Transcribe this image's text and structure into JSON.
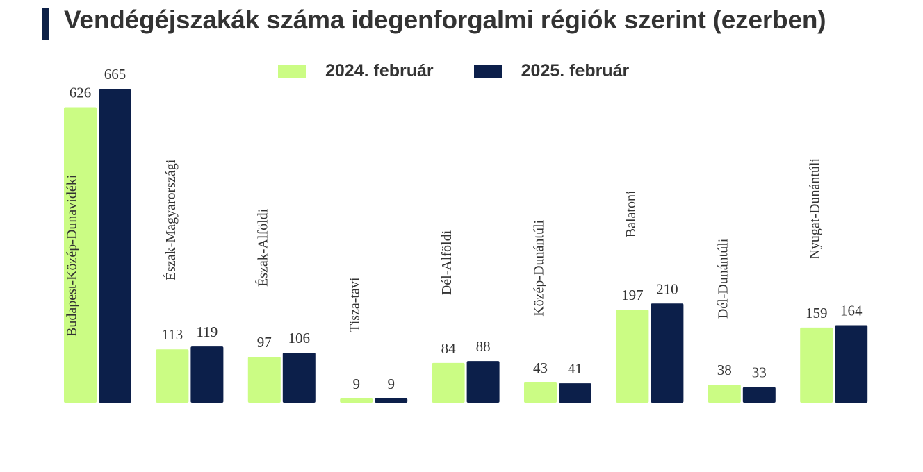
{
  "header": {
    "title": "Vendégéjszakák száma idegenforgalmi régiók szerint (ezerben)"
  },
  "colors": {
    "series_2024": "#cbfc84",
    "series_2025": "#0c1f4a",
    "title_bar": "#0c2046"
  },
  "chart_data": {
    "type": "bar",
    "title": "Vendégéjszakák száma idegenforgalmi régiók szerint (ezerben)",
    "categories": [
      "Budapest-Közép-Dunavidéki",
      "Észak-Magyarországi",
      "Észak-Alföldi",
      "Tisza-tavi",
      "Dél-Alföldi",
      "Közép-Dunántúli",
      "Balatoni",
      "Dél-Dunántúli",
      "Nyugat-Dunántúli"
    ],
    "series": [
      {
        "name": "2024. február",
        "values": [
          626,
          113,
          97,
          9,
          84,
          43,
          197,
          38,
          159
        ]
      },
      {
        "name": "2025. február",
        "values": [
          665,
          119,
          106,
          9,
          88,
          41,
          210,
          33,
          164
        ]
      }
    ],
    "ylim": [
      0,
      665
    ],
    "grid": false,
    "legend_position": "top"
  }
}
